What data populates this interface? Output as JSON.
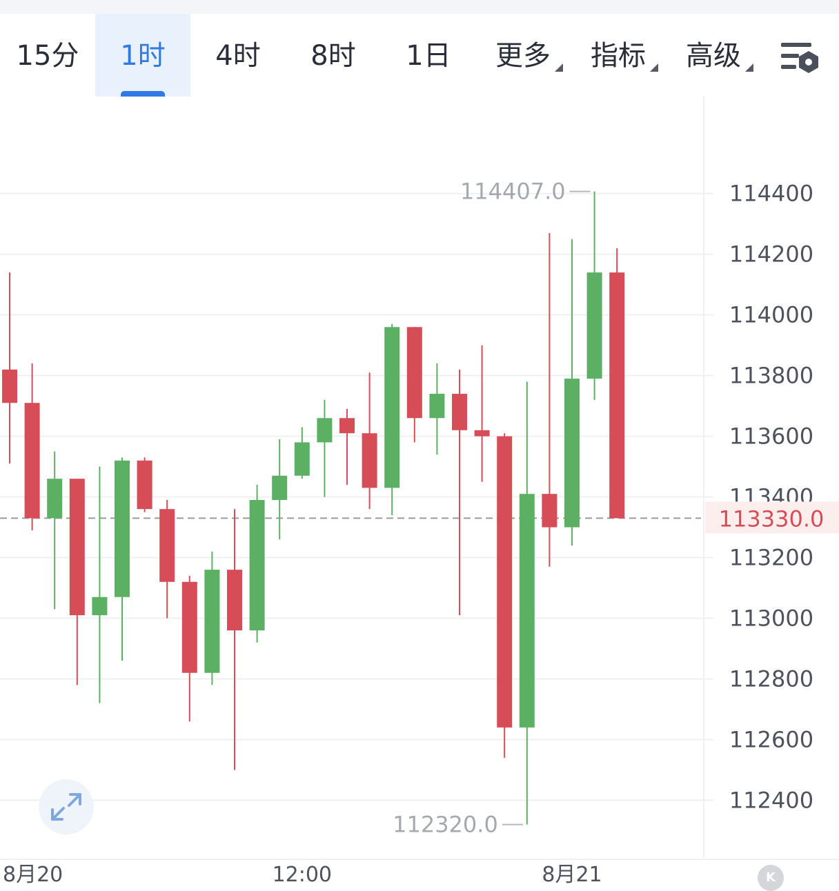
{
  "tabs": [
    {
      "label": "15分",
      "active": false
    },
    {
      "label": "1时",
      "active": true
    },
    {
      "label": "4时",
      "active": false
    },
    {
      "label": "8时",
      "active": false
    },
    {
      "label": "1日",
      "active": false
    }
  ],
  "dropdowns": [
    "更多",
    "指标",
    "高级"
  ],
  "icons": {
    "settings": "chart-settings-icon",
    "expand": "expand-icon",
    "badge": "k-logo"
  },
  "badge_text": "K",
  "colors": {
    "up": "#5cb064",
    "down": "#d64d57",
    "accent": "#2f7ae5",
    "price_line": "#9a9a9a",
    "price_label": "#d64d57"
  },
  "chart_data": {
    "type": "candlestick",
    "y_ticks": [
      "114400",
      "114200",
      "114000",
      "113800",
      "113600",
      "113400",
      "113200",
      "113000",
      "112800",
      "112600",
      "112400"
    ],
    "ylim": [
      112210,
      114720
    ],
    "x_ticks": [
      {
        "label": "8月20",
        "index": 0
      },
      {
        "label": "12:00",
        "index": 13
      },
      {
        "label": "8月21",
        "index": 25
      }
    ],
    "annotations": {
      "high": "114407.0",
      "low": "112320.0"
    },
    "current_price": "113330.0",
    "grid": true,
    "candles": [
      {
        "o": 113820,
        "h": 114140,
        "l": 113510,
        "c": 113710
      },
      {
        "o": 113710,
        "h": 113840,
        "l": 113290,
        "c": 113330
      },
      {
        "o": 113330,
        "h": 113550,
        "l": 113030,
        "c": 113460
      },
      {
        "o": 113460,
        "h": 113460,
        "l": 112780,
        "c": 113010
      },
      {
        "o": 113010,
        "h": 113500,
        "l": 112720,
        "c": 113070
      },
      {
        "o": 113070,
        "h": 113530,
        "l": 112860,
        "c": 113520
      },
      {
        "o": 113520,
        "h": 113530,
        "l": 113350,
        "c": 113360
      },
      {
        "o": 113360,
        "h": 113390,
        "l": 113000,
        "c": 113120
      },
      {
        "o": 113120,
        "h": 113140,
        "l": 112660,
        "c": 112820
      },
      {
        "o": 112820,
        "h": 113220,
        "l": 112780,
        "c": 113160
      },
      {
        "o": 113160,
        "h": 113360,
        "l": 112500,
        "c": 112960
      },
      {
        "o": 112960,
        "h": 113440,
        "l": 112920,
        "c": 113390
      },
      {
        "o": 113390,
        "h": 113590,
        "l": 113260,
        "c": 113470
      },
      {
        "o": 113470,
        "h": 113630,
        "l": 113460,
        "c": 113580
      },
      {
        "o": 113580,
        "h": 113720,
        "l": 113400,
        "c": 113660
      },
      {
        "o": 113660,
        "h": 113690,
        "l": 113440,
        "c": 113610
      },
      {
        "o": 113610,
        "h": 113810,
        "l": 113360,
        "c": 113430
      },
      {
        "o": 113430,
        "h": 113970,
        "l": 113340,
        "c": 113960
      },
      {
        "o": 113960,
        "h": 113960,
        "l": 113580,
        "c": 113660
      },
      {
        "o": 113660,
        "h": 113840,
        "l": 113540,
        "c": 113740
      },
      {
        "o": 113740,
        "h": 113820,
        "l": 113010,
        "c": 113620
      },
      {
        "o": 113620,
        "h": 113900,
        "l": 113450,
        "c": 113600
      },
      {
        "o": 113600,
        "h": 113610,
        "l": 112540,
        "c": 112640
      },
      {
        "o": 112640,
        "h": 113780,
        "l": 112320,
        "c": 113410
      },
      {
        "o": 113410,
        "h": 114270,
        "l": 113170,
        "c": 113300
      },
      {
        "o": 113300,
        "h": 114250,
        "l": 113240,
        "c": 113790
      },
      {
        "o": 113790,
        "h": 114407,
        "l": 113720,
        "c": 114140
      },
      {
        "o": 114140,
        "h": 114220,
        "l": 113330,
        "c": 113330
      }
    ]
  }
}
